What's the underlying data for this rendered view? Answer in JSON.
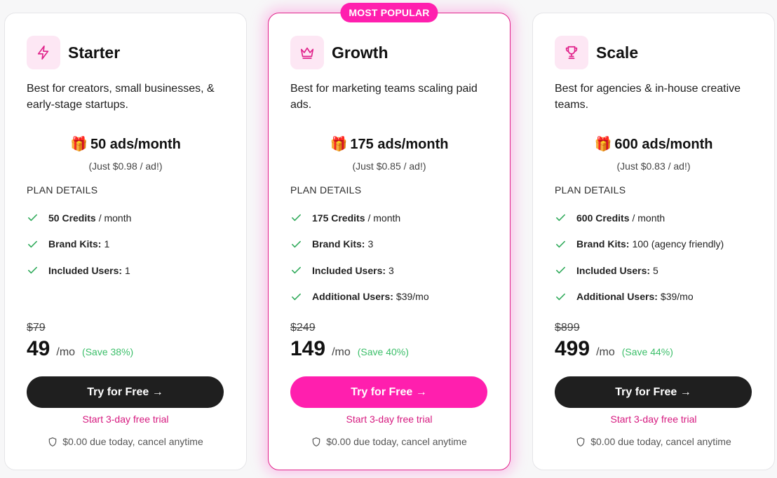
{
  "badge": "MOST POPULAR",
  "plans_title": "PLAN DETAILS",
  "plans": [
    {
      "name": "Starter",
      "icon": "lightning-icon",
      "description": "Best for creators, small businesses, & early-stage startups.",
      "quota": "50 ads/month",
      "per_ad": "(Just $0.98 / ad!)",
      "features": [
        {
          "label": "50 Credits",
          "value": "/ month"
        },
        {
          "label": "Brand Kits:",
          "value": "1"
        },
        {
          "label": "Included Users:",
          "value": "1"
        }
      ],
      "old_price": "$79",
      "price": "49",
      "per": "/mo",
      "save": "(Save 38%)",
      "cta": "Try for Free →",
      "trial": "Start 3-day free trial",
      "due": "$0.00 due today, cancel anytime"
    },
    {
      "name": "Growth",
      "icon": "crown-icon",
      "description": "Best for marketing teams scaling paid ads.",
      "quota": "175 ads/month",
      "per_ad": "(Just $0.85 / ad!)",
      "features": [
        {
          "label": "175 Credits",
          "value": "/ month"
        },
        {
          "label": "Brand Kits:",
          "value": "3"
        },
        {
          "label": "Included Users:",
          "value": "3"
        },
        {
          "label": "Additional Users:",
          "value": "$39/mo"
        }
      ],
      "old_price": "$249",
      "price": "149",
      "per": "/mo",
      "save": "(Save 40%)",
      "cta": "Try for Free →",
      "trial": "Start 3-day free trial",
      "due": "$0.00 due today, cancel anytime"
    },
    {
      "name": "Scale",
      "icon": "trophy-icon",
      "description": "Best for agencies & in-house creative teams.",
      "quota": "600 ads/month",
      "per_ad": "(Just $0.83 / ad!)",
      "features": [
        {
          "label": "600 Credits",
          "value": "/ month"
        },
        {
          "label": "Brand Kits:",
          "value": "100 (agency friendly)"
        },
        {
          "label": "Included Users:",
          "value": "5"
        },
        {
          "label": "Additional Users:",
          "value": "$39/mo"
        }
      ],
      "old_price": "$899",
      "price": "499",
      "per": "/mo",
      "save": "(Save 44%)",
      "cta": "Try for Free →",
      "trial": "Start 3-day free trial",
      "due": "$0.00 due today, cancel anytime"
    }
  ],
  "colors": {
    "accent": "#ff1fae",
    "accent_text": "#d6197f",
    "save_green": "#3cbf6a",
    "check_green": "#2faa5a",
    "dark_button": "#1f1f1f",
    "icon_bg": "#fde7f4"
  }
}
